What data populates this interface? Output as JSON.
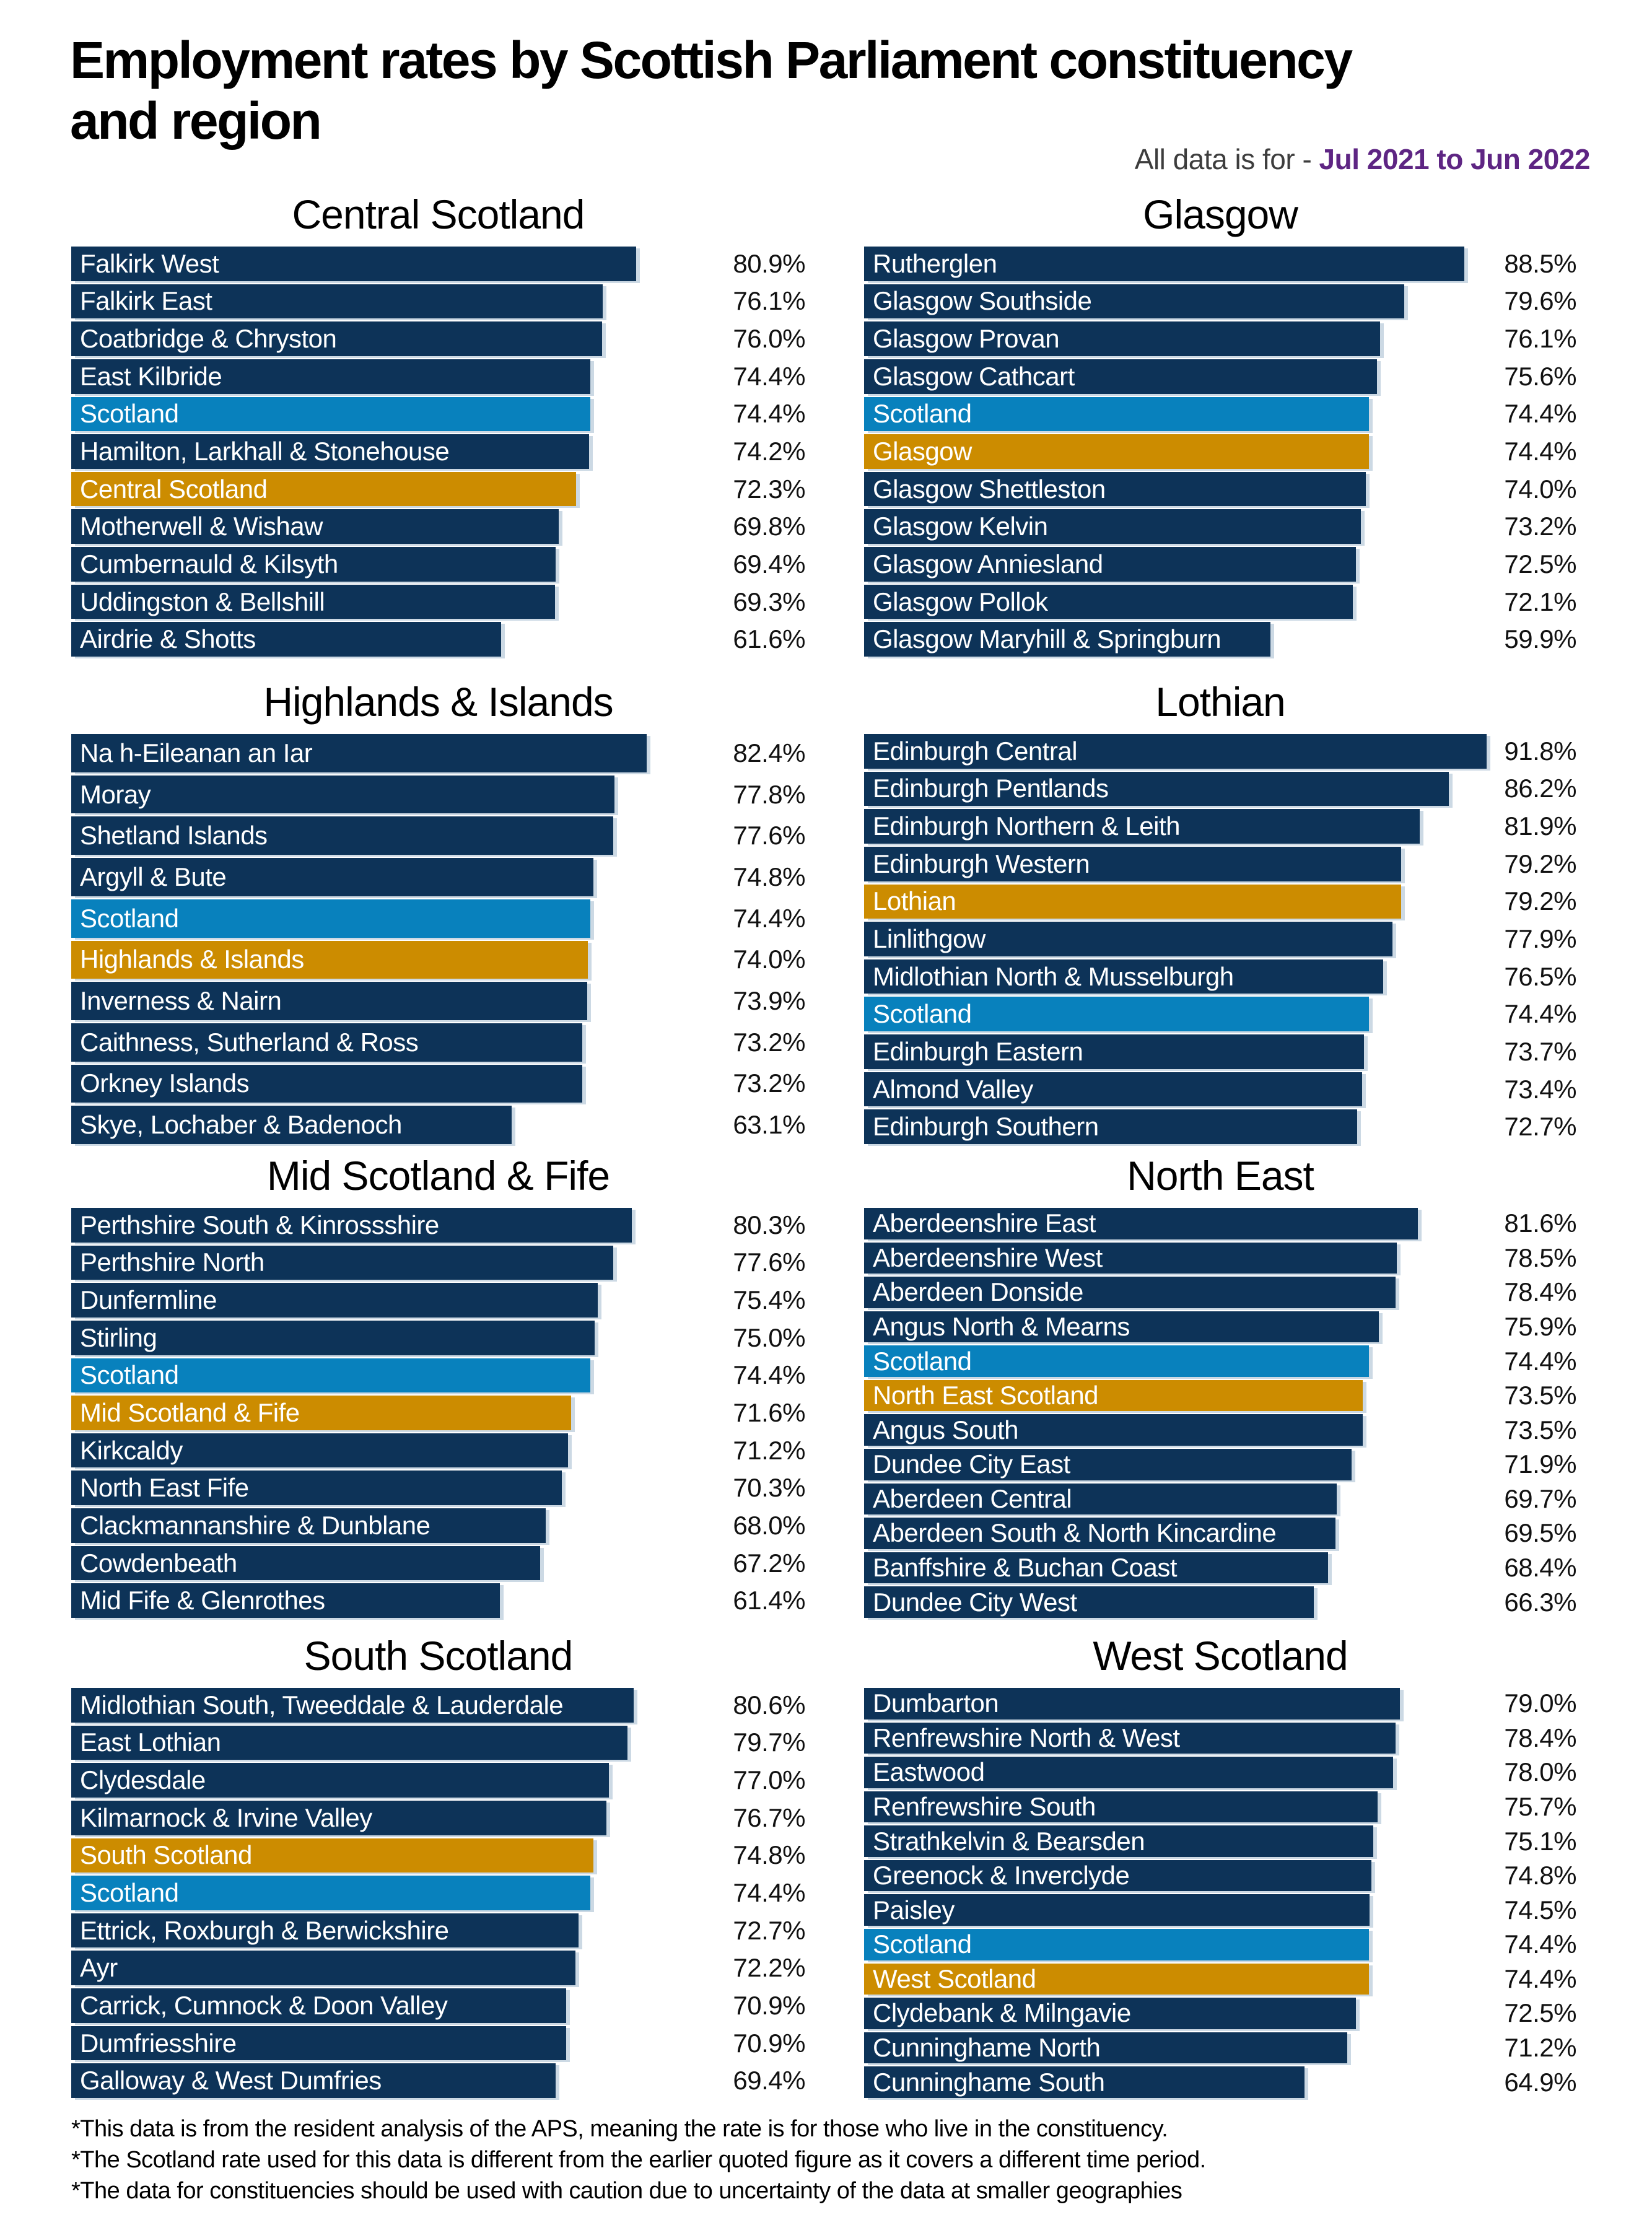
{
  "header": {
    "title_line1": "Employment rates by Scottish Parliament constituency",
    "title_line2": "and region",
    "subtitle_prefix": "All data is for - ",
    "subtitle_period": "Jul 2021 to Jun 2022"
  },
  "colors": {
    "constituency_bar": "#0d3358",
    "scotland_bar": "#0881bd",
    "region_bar": "#cc8c00",
    "period_text": "#5e2583"
  },
  "chart_data": [
    {
      "type": "bar",
      "orientation": "horizontal",
      "unit": "%",
      "xlim": [
        0,
        100
      ],
      "title": "Central Scotland",
      "bars": [
        {
          "label": "Falkirk West",
          "value": 80.9,
          "kind": "constituency"
        },
        {
          "label": "Falkirk East",
          "value": 76.1,
          "kind": "constituency"
        },
        {
          "label": "Coatbridge & Chryston",
          "value": 76.0,
          "kind": "constituency"
        },
        {
          "label": "East Kilbride",
          "value": 74.4,
          "kind": "constituency"
        },
        {
          "label": "Scotland",
          "value": 74.4,
          "kind": "scotland"
        },
        {
          "label": "Hamilton, Larkhall & Stonehouse",
          "value": 74.2,
          "kind": "constituency"
        },
        {
          "label": "Central Scotland",
          "value": 72.3,
          "kind": "region"
        },
        {
          "label": "Motherwell & Wishaw",
          "value": 69.8,
          "kind": "constituency"
        },
        {
          "label": "Cumbernauld & Kilsyth",
          "value": 69.4,
          "kind": "constituency"
        },
        {
          "label": "Uddingston & Bellshill",
          "value": 69.3,
          "kind": "constituency"
        },
        {
          "label": "Airdrie & Shotts",
          "value": 61.6,
          "kind": "constituency"
        }
      ]
    },
    {
      "type": "bar",
      "orientation": "horizontal",
      "unit": "%",
      "xlim": [
        0,
        100
      ],
      "title": "Glasgow",
      "bars": [
        {
          "label": "Rutherglen",
          "value": 88.5,
          "kind": "constituency"
        },
        {
          "label": "Glasgow Southside",
          "value": 79.6,
          "kind": "constituency"
        },
        {
          "label": "Glasgow Provan",
          "value": 76.1,
          "kind": "constituency"
        },
        {
          "label": "Glasgow Cathcart",
          "value": 75.6,
          "kind": "constituency"
        },
        {
          "label": "Scotland",
          "value": 74.4,
          "kind": "scotland"
        },
        {
          "label": "Glasgow",
          "value": 74.4,
          "kind": "region"
        },
        {
          "label": "Glasgow Shettleston",
          "value": 74.0,
          "kind": "constituency"
        },
        {
          "label": "Glasgow Kelvin",
          "value": 73.2,
          "kind": "constituency"
        },
        {
          "label": "Glasgow Anniesland",
          "value": 72.5,
          "kind": "constituency"
        },
        {
          "label": "Glasgow Pollok",
          "value": 72.1,
          "kind": "constituency"
        },
        {
          "label": "Glasgow Maryhill & Springburn",
          "value": 59.9,
          "kind": "constituency"
        }
      ]
    },
    {
      "type": "bar",
      "orientation": "horizontal",
      "unit": "%",
      "xlim": [
        0,
        100
      ],
      "title": "Highlands & Islands",
      "bars": [
        {
          "label": "Na h-Eileanan an Iar",
          "value": 82.4,
          "kind": "constituency"
        },
        {
          "label": "Moray",
          "value": 77.8,
          "kind": "constituency"
        },
        {
          "label": "Shetland Islands",
          "value": 77.6,
          "kind": "constituency"
        },
        {
          "label": "Argyll & Bute",
          "value": 74.8,
          "kind": "constituency"
        },
        {
          "label": "Scotland",
          "value": 74.4,
          "kind": "scotland"
        },
        {
          "label": "Highlands & Islands",
          "value": 74.0,
          "kind": "region"
        },
        {
          "label": "Inverness & Nairn",
          "value": 73.9,
          "kind": "constituency"
        },
        {
          "label": "Caithness, Sutherland & Ross",
          "value": 73.2,
          "kind": "constituency"
        },
        {
          "label": "Orkney Islands",
          "value": 73.2,
          "kind": "constituency"
        },
        {
          "label": "Skye, Lochaber & Badenoch",
          "value": 63.1,
          "kind": "constituency"
        }
      ]
    },
    {
      "type": "bar",
      "orientation": "horizontal",
      "unit": "%",
      "xlim": [
        0,
        100
      ],
      "title": "Lothian",
      "bars": [
        {
          "label": "Edinburgh Central",
          "value": 91.8,
          "kind": "constituency"
        },
        {
          "label": "Edinburgh Pentlands",
          "value": 86.2,
          "kind": "constituency"
        },
        {
          "label": "Edinburgh Northern & Leith",
          "value": 81.9,
          "kind": "constituency"
        },
        {
          "label": "Edinburgh Western",
          "value": 79.2,
          "kind": "constituency"
        },
        {
          "label": "Lothian",
          "value": 79.2,
          "kind": "region"
        },
        {
          "label": "Linlithgow",
          "value": 77.9,
          "kind": "constituency"
        },
        {
          "label": "Midlothian North & Musselburgh",
          "value": 76.5,
          "kind": "constituency"
        },
        {
          "label": "Scotland",
          "value": 74.4,
          "kind": "scotland"
        },
        {
          "label": "Edinburgh Eastern",
          "value": 73.7,
          "kind": "constituency"
        },
        {
          "label": "Almond Valley",
          "value": 73.4,
          "kind": "constituency"
        },
        {
          "label": "Edinburgh Southern",
          "value": 72.7,
          "kind": "constituency"
        }
      ]
    },
    {
      "type": "bar",
      "orientation": "horizontal",
      "unit": "%",
      "xlim": [
        0,
        100
      ],
      "title": "Mid Scotland & Fife",
      "bars": [
        {
          "label": "Perthshire South & Kinrossshire",
          "value": 80.3,
          "kind": "constituency"
        },
        {
          "label": "Perthshire North",
          "value": 77.6,
          "kind": "constituency"
        },
        {
          "label": "Dunfermline",
          "value": 75.4,
          "kind": "constituency"
        },
        {
          "label": "Stirling",
          "value": 75.0,
          "kind": "constituency"
        },
        {
          "label": "Scotland",
          "value": 74.4,
          "kind": "scotland"
        },
        {
          "label": "Mid Scotland & Fife",
          "value": 71.6,
          "kind": "region"
        },
        {
          "label": "Kirkcaldy",
          "value": 71.2,
          "kind": "constituency"
        },
        {
          "label": "North East Fife",
          "value": 70.3,
          "kind": "constituency"
        },
        {
          "label": "Clackmannanshire & Dunblane",
          "value": 68.0,
          "kind": "constituency"
        },
        {
          "label": "Cowdenbeath",
          "value": 67.2,
          "kind": "constituency"
        },
        {
          "label": "Mid Fife & Glenrothes",
          "value": 61.4,
          "kind": "constituency"
        }
      ]
    },
    {
      "type": "bar",
      "orientation": "horizontal",
      "unit": "%",
      "xlim": [
        0,
        100
      ],
      "title": "North East",
      "bars": [
        {
          "label": "Aberdeenshire East",
          "value": 81.6,
          "kind": "constituency"
        },
        {
          "label": "Aberdeenshire West",
          "value": 78.5,
          "kind": "constituency"
        },
        {
          "label": "Aberdeen Donside",
          "value": 78.4,
          "kind": "constituency"
        },
        {
          "label": "Angus North & Mearns",
          "value": 75.9,
          "kind": "constituency"
        },
        {
          "label": "Scotland",
          "value": 74.4,
          "kind": "scotland"
        },
        {
          "label": "North East Scotland",
          "value": 73.5,
          "kind": "region"
        },
        {
          "label": "Angus South",
          "value": 73.5,
          "kind": "constituency"
        },
        {
          "label": "Dundee City East",
          "value": 71.9,
          "kind": "constituency"
        },
        {
          "label": "Aberdeen Central",
          "value": 69.7,
          "kind": "constituency"
        },
        {
          "label": "Aberdeen South & North Kincardine",
          "value": 69.5,
          "kind": "constituency"
        },
        {
          "label": "Banffshire & Buchan Coast",
          "value": 68.4,
          "kind": "constituency"
        },
        {
          "label": "Dundee City West",
          "value": 66.3,
          "kind": "constituency"
        }
      ]
    },
    {
      "type": "bar",
      "orientation": "horizontal",
      "unit": "%",
      "xlim": [
        0,
        100
      ],
      "title": "South Scotland",
      "bars": [
        {
          "label": "Midlothian South, Tweeddale & Lauderdale",
          "value": 80.6,
          "kind": "constituency"
        },
        {
          "label": "East Lothian",
          "value": 79.7,
          "kind": "constituency"
        },
        {
          "label": "Clydesdale",
          "value": 77.0,
          "kind": "constituency"
        },
        {
          "label": "Kilmarnock & Irvine Valley",
          "value": 76.7,
          "kind": "constituency"
        },
        {
          "label": "South Scotland",
          "value": 74.8,
          "kind": "region"
        },
        {
          "label": "Scotland",
          "value": 74.4,
          "kind": "scotland"
        },
        {
          "label": "Ettrick, Roxburgh & Berwickshire",
          "value": 72.7,
          "kind": "constituency"
        },
        {
          "label": "Ayr",
          "value": 72.2,
          "kind": "constituency"
        },
        {
          "label": "Carrick, Cumnock & Doon Valley",
          "value": 70.9,
          "kind": "constituency"
        },
        {
          "label": "Dumfriesshire",
          "value": 70.9,
          "kind": "constituency"
        },
        {
          "label": "Galloway & West Dumfries",
          "value": 69.4,
          "kind": "constituency"
        }
      ]
    },
    {
      "type": "bar",
      "orientation": "horizontal",
      "unit": "%",
      "xlim": [
        0,
        100
      ],
      "title": "West Scotland",
      "bars": [
        {
          "label": "Dumbarton",
          "value": 79.0,
          "kind": "constituency"
        },
        {
          "label": "Renfrewshire North & West",
          "value": 78.4,
          "kind": "constituency"
        },
        {
          "label": "Eastwood",
          "value": 78.0,
          "kind": "constituency"
        },
        {
          "label": "Renfrewshire South",
          "value": 75.7,
          "kind": "constituency"
        },
        {
          "label": "Strathkelvin & Bearsden",
          "value": 75.1,
          "kind": "constituency"
        },
        {
          "label": "Greenock & Inverclyde",
          "value": 74.8,
          "kind": "constituency"
        },
        {
          "label": "Paisley",
          "value": 74.5,
          "kind": "constituency"
        },
        {
          "label": "Scotland",
          "value": 74.4,
          "kind": "scotland"
        },
        {
          "label": "West Scotland",
          "value": 74.4,
          "kind": "region"
        },
        {
          "label": "Clydebank & Milngavie",
          "value": 72.5,
          "kind": "constituency"
        },
        {
          "label": "Cunninghame North",
          "value": 71.2,
          "kind": "constituency"
        },
        {
          "label": "Cunninghame South",
          "value": 64.9,
          "kind": "constituency"
        }
      ]
    }
  ],
  "footnotes": [
    "*This data is from the resident analysis of the APS, meaning the rate is for those who live in the constituency.",
    "*The Scotland rate used for this data is different from the earlier quoted figure as it covers a different time period.",
    "*The data for constituencies should be used with caution due to uncertainty of the data at smaller geographies"
  ]
}
